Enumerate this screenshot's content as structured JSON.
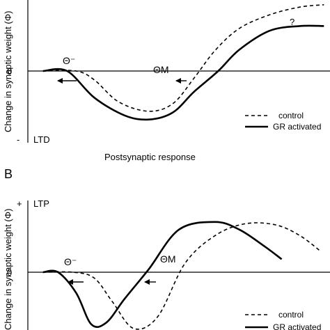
{
  "figure": {
    "panel_a": {
      "label": "",
      "ylabel": "Change in synaptic weight (Φ)",
      "plus_sign": "",
      "pole_top": "",
      "minus_sign": "-",
      "pole_bottom": "LTD",
      "zero": "0",
      "xlabel": "Postsynaptic response",
      "theta_minus": "Θ⁻",
      "theta_m": "ΘM",
      "uncertain": "?"
    },
    "panel_b": {
      "label": "B",
      "ylabel": "Change in synaptic weight (Φ)",
      "plus_sign": "+",
      "pole_top": "LTP",
      "minus_sign": "",
      "pole_bottom": "",
      "zero": "0",
      "xlabel": "",
      "theta_minus": "Θ⁻",
      "theta_m": "ΘM",
      "uncertain": ""
    },
    "legend": {
      "control": "control",
      "gr_activated": "GR activated"
    }
  },
  "chart_data": [
    {
      "type": "line",
      "panel": "A",
      "title": "",
      "xlabel": "Postsynaptic response",
      "ylabel": "Change in synaptic weight (Φ)",
      "ylim": [
        -1.2,
        1.2
      ],
      "xlim": [
        0,
        10
      ],
      "x_ticks": [],
      "y_ticks": [
        "0"
      ],
      "pole_labels": {
        "top": "",
        "bottom": "LTD"
      },
      "annotations": [
        "Θ⁻",
        "ΘM",
        "?"
      ],
      "legend": {
        "position": "bottom-right"
      },
      "series": [
        {
          "name": "control",
          "style": "dashed",
          "x": [
            0.5,
            1.6,
            2.2,
            3.0,
            4.0,
            4.8,
            5.5,
            6.2,
            7.0,
            8.0,
            9.0,
            9.8
          ],
          "y": [
            0.0,
            0.0,
            -0.15,
            -0.52,
            -0.68,
            -0.55,
            -0.12,
            0.35,
            0.72,
            0.95,
            1.08,
            1.12
          ]
        },
        {
          "name": "GR activated",
          "style": "solid",
          "x": [
            0.5,
            1.3,
            2.2,
            3.2,
            4.0,
            4.8,
            5.5,
            6.3,
            7.0,
            8.0,
            9.0,
            9.8
          ],
          "y": [
            0.0,
            0.0,
            -0.45,
            -0.75,
            -0.82,
            -0.7,
            -0.35,
            0.0,
            0.36,
            0.68,
            0.76,
            0.76
          ]
        }
      ]
    },
    {
      "type": "line",
      "panel": "B",
      "title": "",
      "xlabel": "",
      "ylabel": "Change in synaptic weight (Φ)",
      "ylim": [
        -1.2,
        1.2
      ],
      "xlim": [
        0,
        10
      ],
      "x_ticks": [],
      "y_ticks": [
        "0"
      ],
      "pole_labels": {
        "top": "LTP",
        "bottom": ""
      },
      "annotations": [
        "Θ⁻",
        "ΘM"
      ],
      "legend": {
        "position": "bottom-right"
      },
      "series": [
        {
          "name": "control",
          "style": "dashed",
          "x": [
            0.5,
            1.5,
            2.2,
            2.8,
            3.5,
            4.3,
            5.2,
            6.2,
            7.2,
            8.2,
            9.0,
            9.7
          ],
          "y": [
            0.0,
            0.0,
            -0.1,
            -0.5,
            -0.95,
            -0.75,
            0.15,
            0.62,
            0.82,
            0.8,
            0.62,
            0.35
          ]
        },
        {
          "name": "GR activated",
          "style": "solid",
          "x": [
            0.5,
            1.0,
            1.6,
            2.1,
            2.6,
            3.2,
            4.0,
            5.0,
            6.2,
            7.0,
            7.8,
            8.4
          ],
          "y": [
            0.0,
            0.0,
            -0.35,
            -0.88,
            -0.85,
            -0.45,
            0.05,
            0.72,
            0.85,
            0.72,
            0.45,
            0.22
          ]
        }
      ]
    }
  ]
}
